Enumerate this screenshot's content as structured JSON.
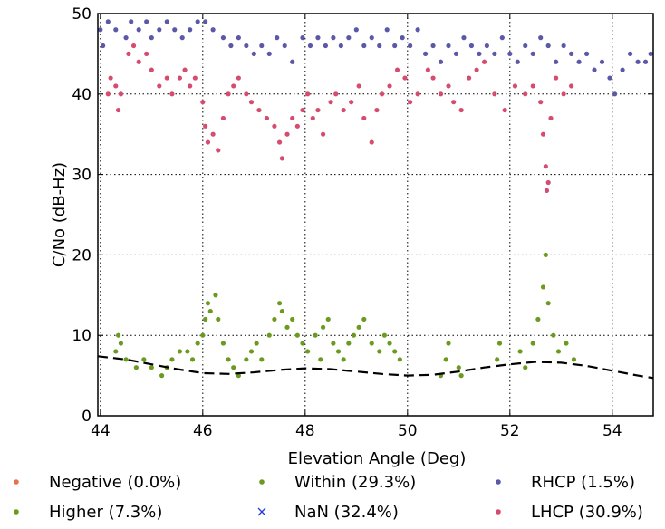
{
  "chart_data": {
    "type": "scatter",
    "xlabel": "Elevation Angle (Deg)",
    "ylabel": "C/No (dB-Hz)",
    "xlim": [
      43.95,
      54.8
    ],
    "ylim": [
      0,
      50
    ],
    "xticks": [
      "44",
      "46",
      "48",
      "50",
      "52",
      "54"
    ],
    "yticks": [
      "0",
      "10",
      "20",
      "30",
      "40",
      "50"
    ],
    "grid": true,
    "legend_position": "bottom",
    "series": [
      {
        "name": "Negative (0.0%)",
        "color": "#e8734a",
        "marker": "dot",
        "points": []
      },
      {
        "name": "Higher (7.3%)",
        "color": "#6a9a1e",
        "marker": "dot",
        "points": []
      },
      {
        "name": "Within (29.3%)",
        "color": "#6a9a1e",
        "marker": "dot",
        "points": [
          [
            44.3,
            8
          ],
          [
            44.35,
            10
          ],
          [
            44.4,
            9
          ],
          [
            44.5,
            7
          ],
          [
            44.7,
            6
          ],
          [
            44.85,
            7
          ],
          [
            45.0,
            6
          ],
          [
            45.2,
            5
          ],
          [
            45.3,
            6
          ],
          [
            45.4,
            7
          ],
          [
            45.55,
            8
          ],
          [
            45.7,
            8
          ],
          [
            45.8,
            7
          ],
          [
            45.9,
            9
          ],
          [
            46.0,
            10
          ],
          [
            46.05,
            12
          ],
          [
            46.1,
            14
          ],
          [
            46.15,
            13
          ],
          [
            46.25,
            15
          ],
          [
            46.3,
            12
          ],
          [
            46.4,
            9
          ],
          [
            46.5,
            7
          ],
          [
            46.6,
            6
          ],
          [
            46.7,
            5
          ],
          [
            46.85,
            7
          ],
          [
            46.95,
            8
          ],
          [
            47.05,
            9
          ],
          [
            47.15,
            7
          ],
          [
            47.3,
            10
          ],
          [
            47.4,
            12
          ],
          [
            47.5,
            14
          ],
          [
            47.55,
            13
          ],
          [
            47.65,
            11
          ],
          [
            47.75,
            12
          ],
          [
            47.85,
            10
          ],
          [
            47.95,
            9
          ],
          [
            48.05,
            8
          ],
          [
            48.2,
            10
          ],
          [
            48.3,
            7
          ],
          [
            48.35,
            11
          ],
          [
            48.45,
            12
          ],
          [
            48.55,
            9
          ],
          [
            48.65,
            8
          ],
          [
            48.75,
            7
          ],
          [
            48.85,
            9
          ],
          [
            48.95,
            10
          ],
          [
            49.05,
            11
          ],
          [
            49.15,
            12
          ],
          [
            49.3,
            9
          ],
          [
            49.45,
            8
          ],
          [
            49.55,
            10
          ],
          [
            49.65,
            9
          ],
          [
            49.75,
            8
          ],
          [
            49.85,
            7
          ],
          [
            50.65,
            5
          ],
          [
            50.75,
            7
          ],
          [
            50.8,
            9
          ],
          [
            51.0,
            6
          ],
          [
            51.05,
            5
          ],
          [
            51.75,
            7
          ],
          [
            51.8,
            9
          ],
          [
            52.2,
            8
          ],
          [
            52.3,
            6
          ],
          [
            52.45,
            9
          ],
          [
            52.55,
            12
          ],
          [
            52.65,
            16
          ],
          [
            52.7,
            20
          ],
          [
            52.75,
            14
          ],
          [
            52.85,
            10
          ],
          [
            52.95,
            8
          ],
          [
            53.1,
            9
          ],
          [
            53.25,
            7
          ]
        ]
      },
      {
        "name": "NaN (32.4%)",
        "color": "#1f3fd8",
        "marker": "x",
        "points": []
      },
      {
        "name": "RHCP (1.5%)",
        "color": "#5b58a8",
        "marker": "dot",
        "points": [
          [
            44.0,
            48
          ],
          [
            44.05,
            46
          ],
          [
            44.15,
            49
          ],
          [
            44.3,
            48
          ],
          [
            44.5,
            47
          ],
          [
            44.6,
            49
          ],
          [
            44.75,
            48
          ],
          [
            44.9,
            49
          ],
          [
            45.0,
            47
          ],
          [
            45.15,
            48
          ],
          [
            45.3,
            49
          ],
          [
            45.45,
            48
          ],
          [
            45.6,
            47
          ],
          [
            45.75,
            48
          ],
          [
            45.9,
            49
          ],
          [
            46.05,
            49
          ],
          [
            46.2,
            48
          ],
          [
            46.4,
            47
          ],
          [
            46.55,
            46
          ],
          [
            46.7,
            47
          ],
          [
            46.85,
            46
          ],
          [
            47.0,
            45
          ],
          [
            47.15,
            46
          ],
          [
            47.3,
            45
          ],
          [
            47.45,
            47
          ],
          [
            47.6,
            46
          ],
          [
            47.75,
            44
          ],
          [
            47.95,
            47
          ],
          [
            48.1,
            46
          ],
          [
            48.25,
            47
          ],
          [
            48.4,
            46
          ],
          [
            48.55,
            47
          ],
          [
            48.7,
            46
          ],
          [
            48.85,
            47
          ],
          [
            49.0,
            48
          ],
          [
            49.15,
            46
          ],
          [
            49.3,
            47
          ],
          [
            49.45,
            46
          ],
          [
            49.6,
            48
          ],
          [
            49.75,
            46
          ],
          [
            49.9,
            47
          ],
          [
            50.05,
            46
          ],
          [
            50.2,
            48
          ],
          [
            50.35,
            45
          ],
          [
            50.5,
            46
          ],
          [
            50.65,
            44
          ],
          [
            50.8,
            46
          ],
          [
            50.95,
            45
          ],
          [
            51.1,
            47
          ],
          [
            51.25,
            46
          ],
          [
            51.4,
            45
          ],
          [
            51.55,
            46
          ],
          [
            51.7,
            45
          ],
          [
            51.85,
            47
          ],
          [
            52.0,
            45
          ],
          [
            52.15,
            44
          ],
          [
            52.3,
            46
          ],
          [
            52.45,
            45
          ],
          [
            52.6,
            47
          ],
          [
            52.75,
            46
          ],
          [
            52.9,
            44
          ],
          [
            53.05,
            46
          ],
          [
            53.2,
            45
          ],
          [
            53.35,
            44
          ],
          [
            53.5,
            45
          ],
          [
            53.65,
            43
          ],
          [
            53.8,
            44
          ],
          [
            53.95,
            42
          ],
          [
            54.05,
            40
          ],
          [
            54.2,
            43
          ],
          [
            54.35,
            45
          ],
          [
            54.5,
            44
          ],
          [
            54.65,
            44
          ],
          [
            54.75,
            45
          ]
        ]
      },
      {
        "name": "LHCP (30.9%)",
        "color": "#d64b6e",
        "marker": "dot",
        "points": [
          [
            44.15,
            40
          ],
          [
            44.2,
            42
          ],
          [
            44.3,
            41
          ],
          [
            44.35,
            38
          ],
          [
            44.4,
            40
          ],
          [
            44.55,
            45
          ],
          [
            44.65,
            46
          ],
          [
            44.75,
            44
          ],
          [
            44.9,
            45
          ],
          [
            45.0,
            43
          ],
          [
            45.15,
            41
          ],
          [
            45.3,
            42
          ],
          [
            45.4,
            40
          ],
          [
            45.55,
            42
          ],
          [
            45.65,
            43
          ],
          [
            45.75,
            41
          ],
          [
            45.85,
            42
          ],
          [
            46.0,
            39
          ],
          [
            46.05,
            36
          ],
          [
            46.1,
            34
          ],
          [
            46.2,
            35
          ],
          [
            46.3,
            33
          ],
          [
            46.4,
            37
          ],
          [
            46.5,
            40
          ],
          [
            46.6,
            41
          ],
          [
            46.7,
            42
          ],
          [
            46.85,
            40
          ],
          [
            46.95,
            39
          ],
          [
            47.1,
            38
          ],
          [
            47.25,
            37
          ],
          [
            47.4,
            36
          ],
          [
            47.5,
            34
          ],
          [
            47.55,
            32
          ],
          [
            47.65,
            35
          ],
          [
            47.75,
            37
          ],
          [
            47.85,
            36
          ],
          [
            47.95,
            38
          ],
          [
            48.05,
            40
          ],
          [
            48.15,
            37
          ],
          [
            48.25,
            38
          ],
          [
            48.35,
            35
          ],
          [
            48.5,
            39
          ],
          [
            48.6,
            40
          ],
          [
            48.75,
            38
          ],
          [
            48.9,
            39
          ],
          [
            49.05,
            41
          ],
          [
            49.15,
            37
          ],
          [
            49.3,
            34
          ],
          [
            49.4,
            38
          ],
          [
            49.5,
            40
          ],
          [
            49.65,
            41
          ],
          [
            49.8,
            43
          ],
          [
            49.95,
            42
          ],
          [
            50.05,
            39
          ],
          [
            50.2,
            40
          ],
          [
            50.4,
            43
          ],
          [
            50.5,
            42
          ],
          [
            50.65,
            40
          ],
          [
            50.8,
            41
          ],
          [
            50.9,
            39
          ],
          [
            51.05,
            38
          ],
          [
            51.2,
            42
          ],
          [
            51.35,
            43
          ],
          [
            51.5,
            44
          ],
          [
            51.7,
            40
          ],
          [
            51.9,
            38
          ],
          [
            52.1,
            41
          ],
          [
            52.3,
            40
          ],
          [
            52.45,
            41
          ],
          [
            52.6,
            39
          ],
          [
            52.65,
            35
          ],
          [
            52.7,
            31
          ],
          [
            52.72,
            28
          ],
          [
            52.75,
            29
          ],
          [
            52.8,
            37
          ],
          [
            52.9,
            42
          ],
          [
            53.05,
            40
          ],
          [
            53.2,
            41
          ]
        ]
      }
    ],
    "reference_curve": {
      "style": "dashed",
      "color": "#000000",
      "points": [
        [
          43.95,
          7.4
        ],
        [
          44.5,
          7.0
        ],
        [
          45.0,
          6.4
        ],
        [
          45.5,
          5.8
        ],
        [
          46.0,
          5.3
        ],
        [
          46.5,
          5.2
        ],
        [
          47.0,
          5.4
        ],
        [
          47.5,
          5.7
        ],
        [
          48.0,
          5.9
        ],
        [
          48.5,
          5.8
        ],
        [
          49.0,
          5.5
        ],
        [
          49.5,
          5.2
        ],
        [
          50.0,
          5.0
        ],
        [
          50.5,
          5.1
        ],
        [
          51.0,
          5.5
        ],
        [
          51.5,
          6.0
        ],
        [
          52.0,
          6.4
        ],
        [
          52.5,
          6.7
        ],
        [
          53.0,
          6.6
        ],
        [
          53.5,
          6.2
        ],
        [
          54.0,
          5.6
        ],
        [
          54.5,
          5.0
        ],
        [
          54.8,
          4.7
        ]
      ]
    }
  }
}
